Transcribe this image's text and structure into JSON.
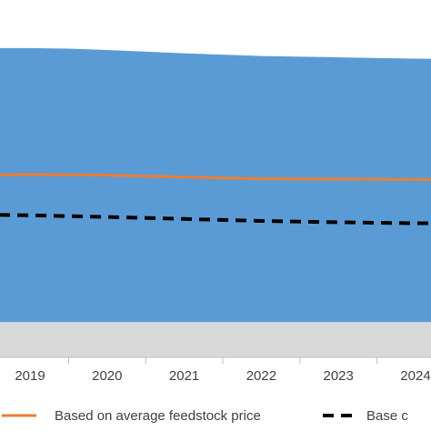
{
  "chart_data": {
    "type": "area",
    "categories": [
      "2019",
      "2020",
      "2021",
      "2022",
      "2023",
      "2024"
    ],
    "x_visible_range": [
      2018.6,
      2024.6
    ],
    "area_upper": [
      {
        "x": 2018.6,
        "y": 93.2
      },
      {
        "x": 2019.0,
        "y": 93.2
      },
      {
        "x": 2019.5,
        "y": 93.0
      },
      {
        "x": 2020.0,
        "y": 92.6
      },
      {
        "x": 2021.0,
        "y": 91.6
      },
      {
        "x": 2022.0,
        "y": 90.8
      },
      {
        "x": 2023.0,
        "y": 90.4
      },
      {
        "x": 2024.0,
        "y": 90.0
      },
      {
        "x": 2024.6,
        "y": 89.9
      }
    ],
    "area_lower": 10.6,
    "floor_band": {
      "from": 0,
      "to": 10.6
    },
    "series": [
      {
        "name": "Based on average feedstock price",
        "color": "#ED7D31",
        "style": "solid",
        "points": [
          {
            "x": 2018.6,
            "y": 55.0
          },
          {
            "x": 2019.0,
            "y": 55.1
          },
          {
            "x": 2019.5,
            "y": 55.0
          },
          {
            "x": 2020.0,
            "y": 54.9
          },
          {
            "x": 2021.0,
            "y": 54.3
          },
          {
            "x": 2022.0,
            "y": 53.8
          },
          {
            "x": 2023.0,
            "y": 53.7
          },
          {
            "x": 2024.0,
            "y": 53.6
          },
          {
            "x": 2024.6,
            "y": 53.6
          }
        ]
      },
      {
        "name": "Base c",
        "color": "#000000",
        "style": "dashed",
        "points": [
          {
            "x": 2018.6,
            "y": 42.9
          },
          {
            "x": 2019.0,
            "y": 42.8
          },
          {
            "x": 2020.0,
            "y": 42.3
          },
          {
            "x": 2021.0,
            "y": 41.7
          },
          {
            "x": 2022.0,
            "y": 41.1
          },
          {
            "x": 2023.0,
            "y": 40.7
          },
          {
            "x": 2024.0,
            "y": 40.4
          },
          {
            "x": 2024.6,
            "y": 40.4
          }
        ]
      }
    ],
    "colors": {
      "area": "#5B9BD5",
      "floor_band": "#D9D9D9",
      "axis": "#BFBFBF"
    },
    "legend": {
      "placement": "bottom",
      "entries": [
        "Based on average feedstock price",
        "Base c"
      ]
    },
    "grid": false,
    "title": "",
    "xlabel": "",
    "ylabel": ""
  }
}
